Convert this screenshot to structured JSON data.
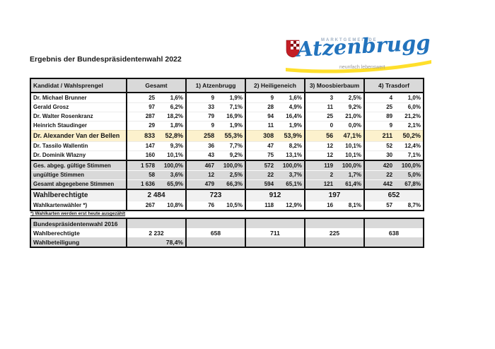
{
  "page": {
    "title": "Ergebnis der Bundespräsidentenwahl 2022",
    "footnote": "*) Wahlkarten werden erst heute ausgezählt"
  },
  "logo": {
    "tagline_top": "MARKTGEMEINDE",
    "name": "Atzenbrugg",
    "tagline_bottom": "neunfach lebenswert"
  },
  "colors": {
    "header_gray": "#d9d9d9",
    "winner_highlight": "#fcf1cd",
    "eligible_gray": "#f1f1f1",
    "logo_blue": "#2273bd",
    "logo_yellow": "#ffdf2b",
    "shield_red": "#c41e25"
  },
  "table": {
    "columns": [
      "Kandidat / Wahlsprengel",
      "Gesamt",
      "1) Atzenbrugg",
      "2) Heiligeneich",
      "3) Moosbierbaum",
      "4) Trasdorf"
    ],
    "rows": [
      {
        "style": "normal",
        "label": "Dr. Michael Brunner",
        "cells": [
          [
            "25",
            "1,6%"
          ],
          [
            "9",
            "1,9%"
          ],
          [
            "9",
            "1,6%"
          ],
          [
            "3",
            "2,5%"
          ],
          [
            "4",
            "1,0%"
          ]
        ]
      },
      {
        "style": "normal",
        "label": "Gerald Grosz",
        "cells": [
          [
            "97",
            "6,2%"
          ],
          [
            "33",
            "7,1%"
          ],
          [
            "28",
            "4,9%"
          ],
          [
            "11",
            "9,2%"
          ],
          [
            "25",
            "6,0%"
          ]
        ]
      },
      {
        "style": "normal",
        "label": "Dr. Walter Rosenkranz",
        "cells": [
          [
            "287",
            "18,2%"
          ],
          [
            "79",
            "16,9%"
          ],
          [
            "94",
            "16,4%"
          ],
          [
            "25",
            "21,0%"
          ],
          [
            "89",
            "21,2%"
          ]
        ]
      },
      {
        "style": "normal",
        "label": "Heinrich Staudinger",
        "cells": [
          [
            "29",
            "1,8%"
          ],
          [
            "9",
            "1,9%"
          ],
          [
            "11",
            "1,9%"
          ],
          [
            "0",
            "0,0%"
          ],
          [
            "9",
            "2,1%"
          ]
        ]
      },
      {
        "style": "winner",
        "label": "Dr. Alexander Van der Bellen",
        "cells": [
          [
            "833",
            "52,8%"
          ],
          [
            "258",
            "55,3%"
          ],
          [
            "308",
            "53,9%"
          ],
          [
            "56",
            "47,1%"
          ],
          [
            "211",
            "50,2%"
          ]
        ]
      },
      {
        "style": "normal",
        "label": "Dr. Tassilo Wallentin",
        "cells": [
          [
            "147",
            "9,3%"
          ],
          [
            "36",
            "7,7%"
          ],
          [
            "47",
            "8,2%"
          ],
          [
            "12",
            "10,1%"
          ],
          [
            "52",
            "12,4%"
          ]
        ]
      },
      {
        "style": "normal",
        "label": "Dr. Dominik Wlazny",
        "cells": [
          [
            "160",
            "10,1%"
          ],
          [
            "43",
            "9,2%"
          ],
          [
            "75",
            "13,1%"
          ],
          [
            "12",
            "10,1%"
          ],
          [
            "30",
            "7,1%"
          ]
        ]
      },
      {
        "style": "gray sep-top",
        "label": "Ges. abgeg. gültige Stimmen",
        "cells": [
          [
            "1 578",
            "100,0%"
          ],
          [
            "467",
            "100,0%"
          ],
          [
            "572",
            "100,0%"
          ],
          [
            "119",
            "100,0%"
          ],
          [
            "420",
            "100,0%"
          ]
        ]
      },
      {
        "style": "gray",
        "label": "ungültige Stimmen",
        "cells": [
          [
            "58",
            "3,6%"
          ],
          [
            "12",
            "2,5%"
          ],
          [
            "22",
            "3,7%"
          ],
          [
            "2",
            "1,7%"
          ],
          [
            "22",
            "5,0%"
          ]
        ]
      },
      {
        "style": "gray",
        "label": "Gesamt abgegebene Stimmen",
        "cells": [
          [
            "1 636",
            "65,9%"
          ],
          [
            "479",
            "66,3%"
          ],
          [
            "594",
            "65,1%"
          ],
          [
            "121",
            "61,4%"
          ],
          [
            "442",
            "67,8%"
          ]
        ]
      },
      {
        "style": "eligible sep-top",
        "label": "Wahlberechtigte",
        "single": [
          "2 484",
          "723",
          "912",
          "197",
          "652"
        ]
      },
      {
        "style": "normal",
        "label": "Wahlkartenwähler *)",
        "cells": [
          [
            "267",
            "10,8%"
          ],
          [
            "76",
            "10,5%"
          ],
          [
            "118",
            "12,9%"
          ],
          [
            "16",
            "8,1%"
          ],
          [
            "57",
            "8,7%"
          ]
        ]
      }
    ]
  },
  "table2016": {
    "rows": [
      {
        "style": "g16",
        "label": "Bundespräsidentenwahl 2016"
      },
      {
        "style": "w16",
        "label": "Wahlberechtigte",
        "single": [
          "2 232",
          "658",
          "711",
          "225",
          "638"
        ]
      },
      {
        "style": "g16",
        "label": "Wahlbeteiligung",
        "right_first": "78,4%"
      }
    ]
  }
}
